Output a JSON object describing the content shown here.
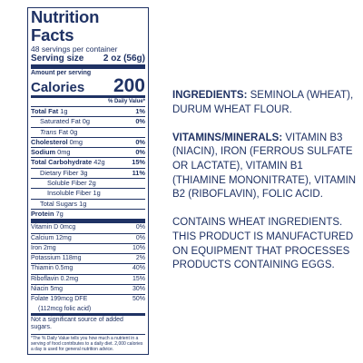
{
  "nutrition": {
    "title": "Nutrition Facts",
    "servings_per_container": "48 servings per container",
    "serving_size_label": "Serving size",
    "serving_size_value": "2 oz (56g)",
    "amount_per_serving": "Amount per serving",
    "calories_label": "Calories",
    "calories_value": "200",
    "dv_header": "% Daily Value*",
    "total_fat": {
      "label": "Total Fat",
      "value": "1g",
      "pct": "1%"
    },
    "saturated_fat": {
      "label": "Saturated Fat",
      "value": "0g",
      "pct": "0%"
    },
    "trans_fat": {
      "label": "Trans",
      "label2": " Fat",
      "value": "0g"
    },
    "cholesterol": {
      "label": "Cholesterol",
      "value": "0mg",
      "pct": "0%"
    },
    "sodium": {
      "label": "Sodium",
      "value": "0mg",
      "pct": "0%"
    },
    "total_carb": {
      "label": "Total Carbohydrate",
      "value": "42g",
      "pct": "15%"
    },
    "dietary_fiber": {
      "label": "Dietary Fiber",
      "value": "3g",
      "pct": "11%"
    },
    "soluble_fiber": {
      "label": "Soluble Fiber",
      "value": "2g"
    },
    "insoluble_fiber": {
      "label": "Insoluble Fiber",
      "value": "1g"
    },
    "total_sugars": {
      "label": "Total Sugars",
      "value": "1g"
    },
    "protein": {
      "label": "Protein",
      "value": "7g"
    },
    "vitamins": [
      {
        "label": "Vitamin D 0mcg",
        "pct": "0%"
      },
      {
        "label": "Calcium 12mg",
        "pct": "0%"
      },
      {
        "label": "Iron 2mg",
        "pct": "10%"
      },
      {
        "label": "Potassium 118mg",
        "pct": "2%"
      },
      {
        "label": "Thiamin 0.5mg",
        "pct": "40%"
      },
      {
        "label": "Riboflavin 0.2mg",
        "pct": "15%"
      },
      {
        "label": "Niacin 5mg",
        "pct": "30%"
      },
      {
        "label": "Folate 199mcg DFE",
        "pct": "50%"
      }
    ],
    "folic": "(112mcg folic acid)",
    "not_significant": "Not a significant source of added sugars.",
    "footnote": "*The % Daily Value tells you how much a nutrient in a serving of food contributes to a daily diet. 2,000 calories a day is used for general nutrition advice."
  },
  "ingredients": {
    "label": "INGREDIENTS:",
    "text": " SEMINOLA (WHEAT), DURUM WHEAT FLOUR."
  },
  "vitamins_minerals": {
    "label": "VITAMINS/MINERALS:",
    "text": " VITAMIN B3 (NIACIN), IRON (FERROUS SULFATE OR LACTATE), VITAMIN B1 (THIAMINE MONONITRATE), VITAMIN B2 (RIBOFLAVIN), FOLIC ACID."
  },
  "allergen": "CONTAINS WHEAT INGREDIENTS. THIS PRODUCT IS MANUFACTURED ON EQUIPMENT THAT PROCESSES PRODUCTS CONTAINING EGGS."
}
